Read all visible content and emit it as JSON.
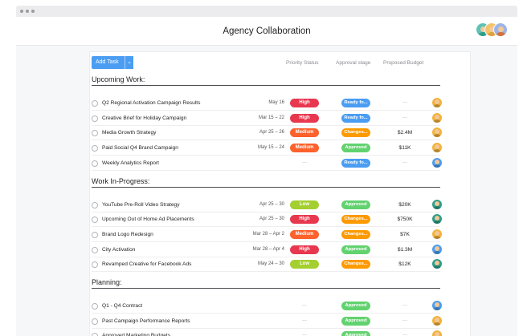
{
  "app": {
    "title": "Agency Collaboration"
  },
  "toolbar": {
    "add_task_label": "Add Task",
    "caret": "⌄"
  },
  "columns": {
    "priority": "Priority Status",
    "approval": "Approval stage",
    "budget": "Proposed Budget"
  },
  "colors": {
    "High": "#e8384f",
    "Medium": "#fd612c",
    "Low": "#a4cf30",
    "Ready fo...": "#4a9df2",
    "Approved": "#62d26f",
    "Changes...": "#fd9a00",
    "accent": "#4a9df2"
  },
  "header_avatars": [
    {
      "icon": "user-avatar",
      "shirt": "#2e9e8a",
      "bg": "#5cc3b5"
    },
    {
      "icon": "user-avatar",
      "shirt": "#e0a23b",
      "bg": "#f3c36b"
    },
    {
      "icon": "user-avatar",
      "shirt": "#d4733b",
      "bg": "#9bb4e8"
    }
  ],
  "sections": [
    {
      "title": "Upcoming Work:",
      "tasks": [
        {
          "name": "Q2 Regional Activation Campaign Results",
          "date": "May 16",
          "priority": "High",
          "approval": "Ready fo...",
          "budget": "",
          "avatar_color": "#f2b33d"
        },
        {
          "name": "Creative Brief for Holiday Campaign",
          "date": "Mar 15 – 22",
          "priority": "High",
          "approval": "Ready fo...",
          "budget": "",
          "avatar_color": "#f2b33d"
        },
        {
          "name": "Media Growth Strategy",
          "date": "Apr 25 – 26",
          "priority": "Medium",
          "approval": "Changes...",
          "budget": "$2.4M",
          "avatar_color": "#f2b33d"
        },
        {
          "name": "Paid Social Q4 Brand Campaign",
          "date": "May 15 – 24",
          "priority": "Medium",
          "approval": "Approved",
          "budget": "$11K",
          "avatar_color": "#f2b33d"
        },
        {
          "name": "Weekly Analytics Report",
          "date": "",
          "priority": "",
          "approval": "Ready fo...",
          "budget": "",
          "avatar_color": "#4a9df2"
        }
      ]
    },
    {
      "title": "Work In-Progress:",
      "tasks": [
        {
          "name": "YouTube Pre-Roll Video Strategy",
          "date": "Apr 25 – 30",
          "priority": "Low",
          "approval": "Approved",
          "budget": "$20K",
          "avatar_color": "#2e9e8a"
        },
        {
          "name": "Upcoming Out of Home Ad Placements",
          "date": "Apr 25 – 30",
          "priority": "High",
          "approval": "Changes...",
          "budget": "$750K",
          "avatar_color": "#2e9e8a"
        },
        {
          "name": "Brand Logo Redesign",
          "date": "Mar 28 – Apr 2",
          "priority": "Medium",
          "approval": "Changes...",
          "budget": "$7K",
          "avatar_color": "#f2b33d"
        },
        {
          "name": "City Activation",
          "date": "Mar 28 – Apr 4",
          "priority": "High",
          "approval": "Approved",
          "budget": "$1.3M",
          "avatar_color": "#4a9df2"
        },
        {
          "name": "Revamped Creative for Facebook Ads",
          "date": "May 24 – 30",
          "priority": "Low",
          "approval": "Changes...",
          "budget": "$12K",
          "avatar_color": "#2e9e8a"
        }
      ]
    },
    {
      "title": "Planning:",
      "tasks": [
        {
          "name": "Q1 - Q4 Contract",
          "date": "",
          "priority": "",
          "approval": "Approved",
          "budget": "",
          "avatar_color": "#4a9df2"
        },
        {
          "name": "Past Campaign Performance Reports",
          "date": "",
          "priority": "",
          "approval": "Approved",
          "budget": "",
          "avatar_color": "#f2b33d"
        },
        {
          "name": "Approved Marketing Budgets",
          "date": "",
          "priority": "",
          "approval": "Approved",
          "budget": "",
          "avatar_color": "#f2b33d"
        }
      ]
    }
  ]
}
